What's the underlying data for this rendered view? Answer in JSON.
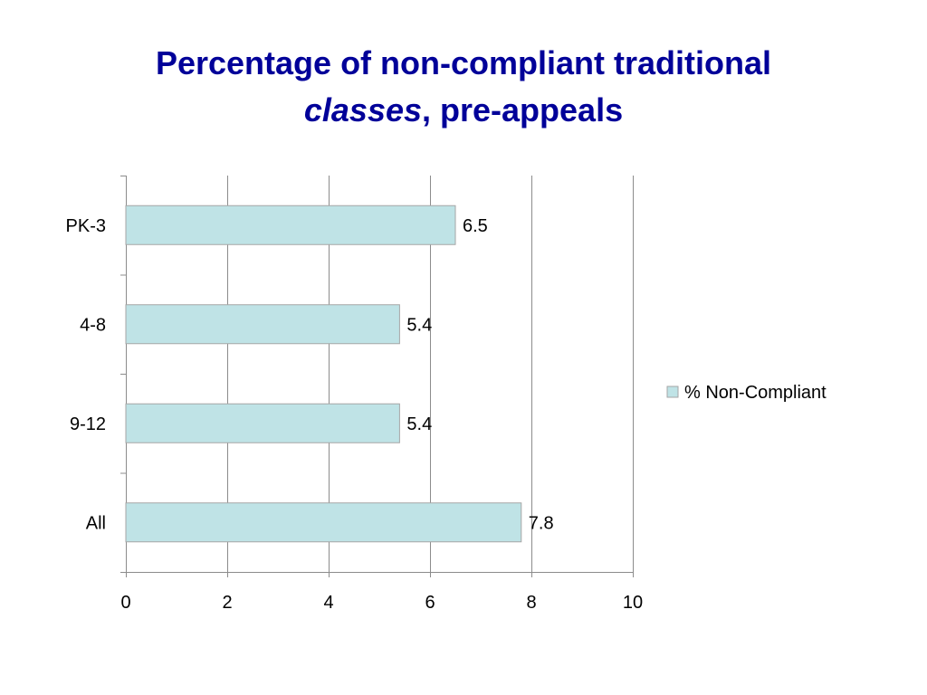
{
  "slide": {
    "title_line1": "Percentage of non-compliant traditional",
    "title_line2_italic": "classes",
    "title_line2_rest": ", pre-appeals"
  },
  "chart_data": {
    "type": "bar",
    "orientation": "horizontal",
    "categories": [
      "PK-3",
      "4-8",
      "9-12",
      "All"
    ],
    "series": [
      {
        "name": "% Non-Compliant",
        "values": [
          6.5,
          5.4,
          5.4,
          7.8
        ],
        "color": "#bfe3e6"
      }
    ],
    "data_labels": [
      "6.5",
      "5.4",
      "5.4",
      "7.8"
    ],
    "xlim": [
      0,
      10
    ],
    "x_ticks": [
      0,
      2,
      4,
      6,
      8,
      10
    ],
    "x_tick_labels": [
      "0",
      "2",
      "4",
      "6",
      "8",
      "10"
    ],
    "grid": true,
    "legend_position": "right",
    "bar_edge_color": "#a6a6a6",
    "gridline_color": "#8c8c8c"
  }
}
